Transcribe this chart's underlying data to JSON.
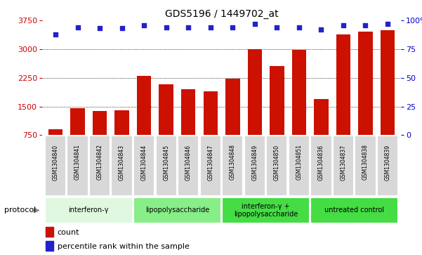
{
  "title": "GDS5196 / 1449702_at",
  "samples": [
    "GSM1304840",
    "GSM1304841",
    "GSM1304842",
    "GSM1304843",
    "GSM1304844",
    "GSM1304845",
    "GSM1304846",
    "GSM1304847",
    "GSM1304848",
    "GSM1304849",
    "GSM1304850",
    "GSM1304851",
    "GSM1304836",
    "GSM1304837",
    "GSM1304838",
    "GSM1304839"
  ],
  "counts": [
    900,
    1450,
    1380,
    1400,
    2300,
    2080,
    1950,
    1900,
    2230,
    3000,
    2550,
    2980,
    1700,
    3380,
    3450,
    3500
  ],
  "percentiles": [
    88,
    94,
    93,
    93,
    96,
    94,
    94,
    94,
    94,
    97,
    94,
    94,
    92,
    96,
    96,
    97
  ],
  "ylim_left": [
    750,
    3750
  ],
  "ylim_right": [
    0,
    100
  ],
  "yticks_left": [
    750,
    1500,
    2250,
    3000,
    3750
  ],
  "yticks_right": [
    0,
    25,
    50,
    75,
    100
  ],
  "bar_color": "#cc1100",
  "dot_color": "#2222cc",
  "plot_bg_color": "#ffffff",
  "cell_bg_color": "#d8d8d8",
  "groups": [
    {
      "label": "interferon-γ",
      "start": 0,
      "end": 4,
      "color": "#e0f8e0"
    },
    {
      "label": "lipopolysaccharide",
      "start": 4,
      "end": 8,
      "color": "#88ee88"
    },
    {
      "label": "interferon-γ +\nlipopolysaccharide",
      "start": 8,
      "end": 12,
      "color": "#44dd44"
    },
    {
      "label": "untreated control",
      "start": 12,
      "end": 16,
      "color": "#44dd44"
    }
  ],
  "left_axis_color": "#cc0000",
  "right_axis_color": "#0000cc",
  "grid_yticks": [
    1500,
    2250,
    3000
  ],
  "protocol_label": "protocol"
}
